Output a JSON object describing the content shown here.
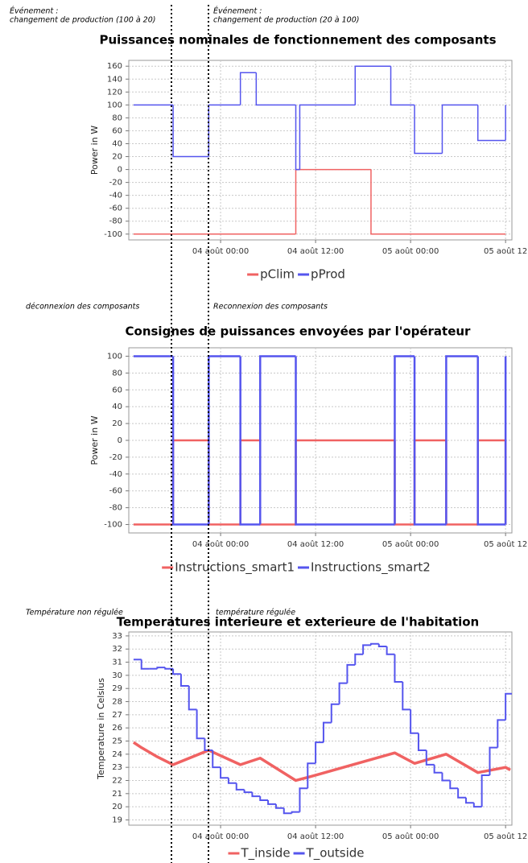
{
  "chart_data": [
    {
      "type": "line",
      "annotations": [
        [
          "Événement :",
          "changement de production (100 à 20)"
        ],
        [
          "Événement :",
          "changement de production (20 à 100)"
        ]
      ],
      "title": "Puissances nominales de fonctionnement des composants",
      "ylabel": "Power in W",
      "xlim": [
        -11.6,
        36.8
      ],
      "xticks": [
        {
          "value": 0,
          "label": "04 août 00:00"
        },
        {
          "value": 12,
          "label": "04 août 12:00"
        },
        {
          "value": 24,
          "label": "05 août 00:00"
        },
        {
          "value": 36,
          "label": "05 août 12"
        }
      ],
      "ylim": [
        -109,
        169
      ],
      "yticks": [
        -100,
        -80,
        -60,
        -40,
        -20,
        0,
        20,
        40,
        60,
        80,
        100,
        120,
        140,
        160
      ],
      "grid": true,
      "legend": "bottom",
      "series": [
        {
          "name": "pClim",
          "color": "#f06262",
          "step": true,
          "width": 1.5,
          "x": [
            -11,
            9.5,
            19,
            36
          ],
          "values": [
            -100,
            0,
            -100,
            -100
          ]
        },
        {
          "name": "pProd",
          "color": "#5555ee",
          "step": true,
          "width": 1.5,
          "x": [
            -11,
            -6,
            -1.5,
            2.5,
            4.5,
            9.5,
            10,
            17,
            21.5,
            24.5,
            28,
            32.5,
            36
          ],
          "values": [
            100,
            20,
            100,
            150,
            100,
            0,
            100,
            160,
            100,
            25,
            100,
            45,
            100
          ]
        }
      ]
    },
    {
      "type": "line",
      "annotations": [
        [
          "déconnexion des composants"
        ],
        [
          "Reconnexion des composants"
        ]
      ],
      "title": "Consignes de puissances envoyées par l'opérateur",
      "ylabel": "Power in W",
      "xlim": [
        -11.6,
        36.8
      ],
      "xticks": [
        {
          "value": 0,
          "label": "04 août 00:00"
        },
        {
          "value": 12,
          "label": "04 août 12:00"
        },
        {
          "value": 24,
          "label": "05 août 00:00"
        },
        {
          "value": 36,
          "label": "05 août 12"
        }
      ],
      "ylim": [
        -110,
        110
      ],
      "yticks": [
        -100,
        -80,
        -60,
        -40,
        -20,
        0,
        20,
        40,
        60,
        80,
        100
      ],
      "grid": true,
      "legend": "bottom",
      "series": [
        {
          "name": "Instructions_smart1",
          "color": "#f06262",
          "step": true,
          "width": 2.5,
          "x": [
            -11,
            -6,
            -1.5,
            2.5,
            5,
            9.5,
            22,
            24.5,
            28.5,
            32.5,
            36
          ],
          "values": [
            -100,
            0,
            -100,
            0,
            -100,
            0,
            -100,
            0,
            -100,
            0,
            -100
          ]
        },
        {
          "name": "Instructions_smart2",
          "color": "#5555ee",
          "step": true,
          "width": 2.5,
          "x": [
            -11,
            -6,
            -1.5,
            2.5,
            5,
            9.5,
            22,
            24.5,
            28.5,
            32.5,
            36
          ],
          "values": [
            100,
            -100,
            100,
            -100,
            100,
            -100,
            100,
            -100,
            100,
            -100,
            100
          ]
        }
      ]
    },
    {
      "type": "line",
      "annotations": [
        [
          "Température non régulée"
        ],
        [
          "température régulée"
        ]
      ],
      "title": "Temperatures interieure et exterieure de l'habitation",
      "ylabel": "Temperature in Celsius",
      "xlim": [
        -11.6,
        36.8
      ],
      "xticks": [
        {
          "value": 0,
          "label": "04 août 00:00"
        },
        {
          "value": 12,
          "label": "04 août 12:00"
        },
        {
          "value": 24,
          "label": "05 août 00:00"
        },
        {
          "value": 36,
          "label": "05 août 12"
        }
      ],
      "ylim": [
        18.6,
        33.3
      ],
      "yticks": [
        19,
        20,
        21,
        22,
        23,
        24,
        25,
        26,
        27,
        28,
        29,
        30,
        31,
        32,
        33
      ],
      "grid": true,
      "legend": "bottom",
      "series": [
        {
          "name": "T_inside",
          "color": "#f06262",
          "step": false,
          "width": 3.5,
          "x": [
            -11,
            -10,
            -8,
            -6,
            -1.5,
            2.5,
            5,
            9.5,
            12,
            22,
            24.5,
            28.5,
            32.5,
            36,
            36.6
          ],
          "values": [
            24.9,
            24.5,
            23.8,
            23.2,
            24.3,
            23.2,
            23.7,
            22.0,
            22.4,
            24.1,
            23.3,
            24.0,
            22.6,
            23.0,
            22.8
          ]
        },
        {
          "name": "T_outside",
          "color": "#5555ee",
          "step": true,
          "width": 2,
          "x": [
            -11,
            -10,
            -9,
            -8,
            -7,
            -6,
            -5,
            -4,
            -3,
            -2,
            -1,
            0,
            1,
            2,
            3,
            4,
            5,
            6,
            7,
            8,
            9,
            10,
            11,
            12,
            13,
            14,
            15,
            16,
            17,
            18,
            19,
            20,
            21,
            22,
            23,
            24,
            25,
            26,
            27,
            28,
            29,
            30,
            31,
            32,
            33,
            34,
            35,
            36,
            36.8
          ],
          "values": [
            31.2,
            30.5,
            30.5,
            30.6,
            30.5,
            30.1,
            29.2,
            27.4,
            25.2,
            24.3,
            23.0,
            22.2,
            21.8,
            21.3,
            21.1,
            20.8,
            20.5,
            20.2,
            19.9,
            19.5,
            19.6,
            21.4,
            23.3,
            24.9,
            26.4,
            27.8,
            29.4,
            30.8,
            31.6,
            32.3,
            32.4,
            32.2,
            31.6,
            29.5,
            27.4,
            25.6,
            24.3,
            23.2,
            22.6,
            22.0,
            21.4,
            20.7,
            20.3,
            20.0,
            22.4,
            24.5,
            26.6,
            28.6,
            28.6
          ]
        }
      ]
    }
  ]
}
